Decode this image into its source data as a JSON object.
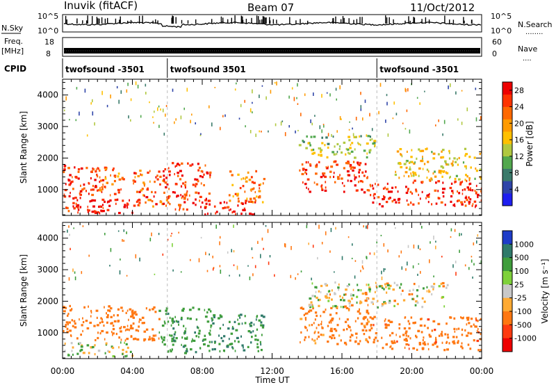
{
  "header": {
    "station": "Inuvik (fitACF)",
    "beam": "Beam 07",
    "date": "11/Oct/2012"
  },
  "panels": {
    "nsky_label": "N.Sky",
    "nsky_ticks": [
      "10^5",
      "10^0"
    ],
    "nsearch_label": "N.Search",
    "nsearch_marker": "........",
    "freq_label_1": "Freq.",
    "freq_label_2": "[MHz]",
    "freq_ticks": [
      "18",
      "8"
    ],
    "nave_label": "Nave",
    "nave_marker": "....",
    "nave_ticks": [
      "60",
      "0"
    ],
    "cpid_label": "CPID",
    "cpid_segments": [
      {
        "name": "twofsound -3501",
        "start_hour": 0,
        "end_hour": 6
      },
      {
        "name": "twofsound 3501",
        "start_hour": 6,
        "end_hour": 18
      },
      {
        "name": "twofsound -3501",
        "start_hour": 18,
        "end_hour": 24
      }
    ]
  },
  "chart_data": [
    {
      "type": "heatmap",
      "title": "",
      "xlabel": "Time UT",
      "ylabel": "Slant Range [km]",
      "xlim": [
        0,
        24
      ],
      "ylim": [
        180,
        4500
      ],
      "xticks": [
        "00:00",
        "04:00",
        "08:00",
        "12:00",
        "16:00",
        "20:00",
        "00:00"
      ],
      "yticks": [
        1000,
        2000,
        3000,
        4000
      ],
      "colorbar": {
        "label": "Power [dB]",
        "ticks": [
          4,
          8,
          12,
          16,
          20,
          24,
          28
        ],
        "range": [
          0,
          30
        ],
        "colors": [
          "#1e1ef0",
          "#2e44a8",
          "#3a7a6a",
          "#52a84e",
          "#b0c840",
          "#ffc000",
          "#ff9a00",
          "#ff6800",
          "#ff3300",
          "#ee0000"
        ]
      },
      "echo_regions": [
        {
          "t": [
            0.0,
            2.5
          ],
          "r": [
            300,
            1800
          ],
          "power": 26
        },
        {
          "t": [
            2.0,
            3.5
          ],
          "r": [
            800,
            1700
          ],
          "power": 22
        },
        {
          "t": [
            0.5,
            4.5
          ],
          "r": [
            250,
            700
          ],
          "power": 29
        },
        {
          "t": [
            4.0,
            6.0
          ],
          "r": [
            450,
            1600
          ],
          "power": 24
        },
        {
          "t": [
            5.7,
            8.5
          ],
          "r": [
            350,
            1850
          ],
          "power": 26
        },
        {
          "t": [
            8.0,
            11.0
          ],
          "r": [
            200,
            650
          ],
          "power": 28
        },
        {
          "t": [
            9.5,
            11.5
          ],
          "r": [
            600,
            1600
          ],
          "power": 21
        },
        {
          "t": [
            13.5,
            17.5
          ],
          "r": [
            900,
            1900
          ],
          "power": 26
        },
        {
          "t": [
            13.5,
            18.0
          ],
          "r": [
            2000,
            2700
          ],
          "power": 13
        },
        {
          "t": [
            17.5,
            24.0
          ],
          "r": [
            450,
            1300
          ],
          "power": 27
        },
        {
          "t": [
            19.0,
            24.0
          ],
          "r": [
            1300,
            2300
          ],
          "power": 16
        }
      ]
    },
    {
      "type": "heatmap",
      "title": "",
      "xlabel": "Time UT",
      "ylabel": "Slant Range [km]",
      "xlim": [
        0,
        24
      ],
      "ylim": [
        180,
        4500
      ],
      "xticks": [
        "00:00",
        "04:00",
        "08:00",
        "12:00",
        "16:00",
        "20:00",
        "00:00"
      ],
      "yticks": [
        1000,
        2000,
        3000,
        4000
      ],
      "colorbar": {
        "label": "Velocity [m s⁻¹]",
        "ticks": [
          "1000",
          "500",
          "100",
          "25",
          "-25",
          "-100",
          "-500",
          "-1000"
        ],
        "colors": [
          "#1e3cc8",
          "#2f7a6a",
          "#3f9d3c",
          "#7ed13a",
          "#c8c8c8",
          "#ffaa33",
          "#ff7711",
          "#ff3a10",
          "#ee0000"
        ]
      },
      "echo_regions": [
        {
          "t": [
            0.0,
            5.5
          ],
          "r": [
            750,
            1850
          ],
          "velocity": -300
        },
        {
          "t": [
            0.0,
            4.0
          ],
          "r": [
            250,
            700
          ],
          "velocity": 20
        },
        {
          "t": [
            5.5,
            8.5
          ],
          "r": [
            350,
            1800
          ],
          "velocity": 200
        },
        {
          "t": [
            8.5,
            11.5
          ],
          "r": [
            400,
            1600
          ],
          "velocity": 300
        },
        {
          "t": [
            13.5,
            17.5
          ],
          "r": [
            600,
            1900
          ],
          "velocity": -200
        },
        {
          "t": [
            14.0,
            22.0
          ],
          "r": [
            1800,
            2600
          ],
          "velocity": 0
        },
        {
          "t": [
            17.5,
            24.0
          ],
          "r": [
            450,
            1500
          ],
          "velocity": -400
        }
      ]
    }
  ]
}
